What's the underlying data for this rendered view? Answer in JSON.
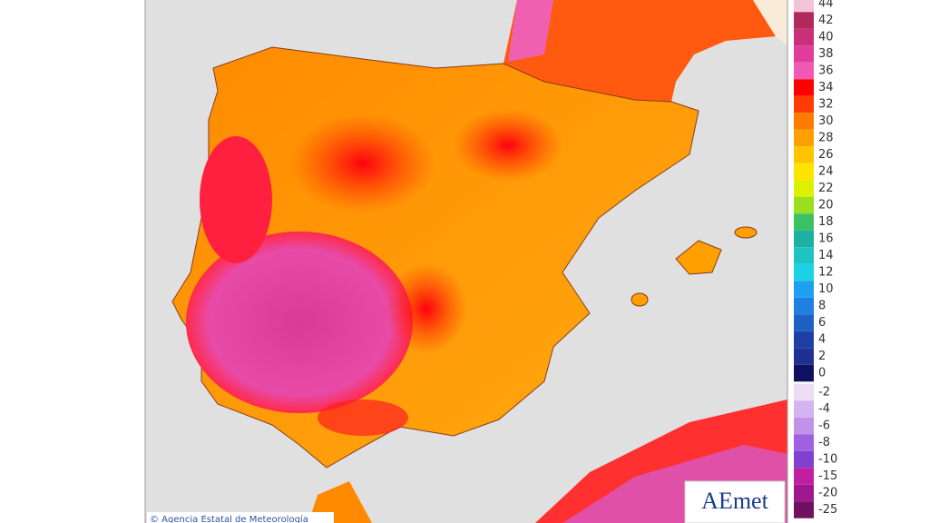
{
  "legend": {
    "warm": [
      {
        "value": 44,
        "color": "#f2c4d6"
      },
      {
        "value": 42,
        "color": "#b02a5e"
      },
      {
        "value": 40,
        "color": "#c83078"
      },
      {
        "value": 38,
        "color": "#e03c9c"
      },
      {
        "value": 36,
        "color": "#f05ab4"
      },
      {
        "value": 34,
        "color": "#ff0000"
      },
      {
        "value": 32,
        "color": "#ff3c00"
      },
      {
        "value": 30,
        "color": "#ff7a00"
      },
      {
        "value": 28,
        "color": "#ffa000"
      },
      {
        "value": 26,
        "color": "#ffc400"
      },
      {
        "value": 24,
        "color": "#ffe400"
      },
      {
        "value": 22,
        "color": "#dcf000"
      },
      {
        "value": 20,
        "color": "#9ade1e"
      },
      {
        "value": 18,
        "color": "#3cc064"
      },
      {
        "value": 16,
        "color": "#1eb0a0"
      },
      {
        "value": 14,
        "color": "#1ec4c4"
      },
      {
        "value": 12,
        "color": "#1ed2e6"
      },
      {
        "value": 10,
        "color": "#1ea0f0"
      },
      {
        "value": 8,
        "color": "#1e80e0"
      },
      {
        "value": 6,
        "color": "#1e60c4"
      },
      {
        "value": 4,
        "color": "#1e40a4"
      },
      {
        "value": 2,
        "color": "#1e3090"
      },
      {
        "value": 0,
        "color": "#101060"
      }
    ],
    "cold": [
      {
        "value": -2,
        "color": "#ecdcf4"
      },
      {
        "value": -4,
        "color": "#d4b4f0"
      },
      {
        "value": -6,
        "color": "#c092e8"
      },
      {
        "value": -8,
        "color": "#a060e0"
      },
      {
        "value": -10,
        "color": "#8040d0"
      },
      {
        "value": -15,
        "color": "#c020a0"
      },
      {
        "value": -20,
        "color": "#a01890"
      },
      {
        "value": -25,
        "color": "#701060"
      }
    ]
  },
  "logo": "AEmet",
  "footer": "© Agencia Estatal de Meteorología"
}
